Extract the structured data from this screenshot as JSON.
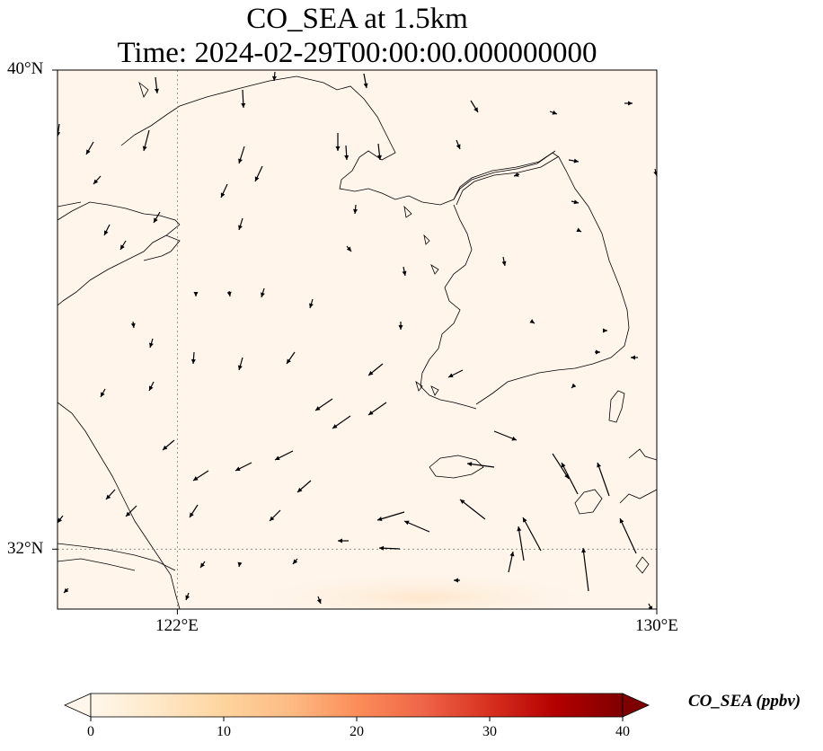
{
  "title": {
    "line1": "CO_SEA at 1.5km",
    "line2": "Time: 2024-02-29T00:00:00.000000000"
  },
  "map": {
    "lat_range": [
      31,
      40
    ],
    "lon_range": [
      120,
      130
    ],
    "lat_ticks": [
      {
        "value": 40,
        "label": "40°N"
      },
      {
        "value": 32,
        "label": "32°N"
      }
    ],
    "lon_ticks": [
      {
        "value": 122,
        "label": "122°E"
      },
      {
        "value": 130,
        "label": "130°E"
      }
    ],
    "gridlines": "dotted",
    "background_color": "#fff5eb",
    "field_note": "near-zero concentration everywhere; faint warm tint near southern edge"
  },
  "colorbar": {
    "label": "CO_SEA (ppbv)",
    "min": 0,
    "max": 40,
    "ticks": [
      "0",
      "10",
      "20",
      "30",
      "40"
    ],
    "colormap": "OrRd",
    "extend": "both"
  }
}
